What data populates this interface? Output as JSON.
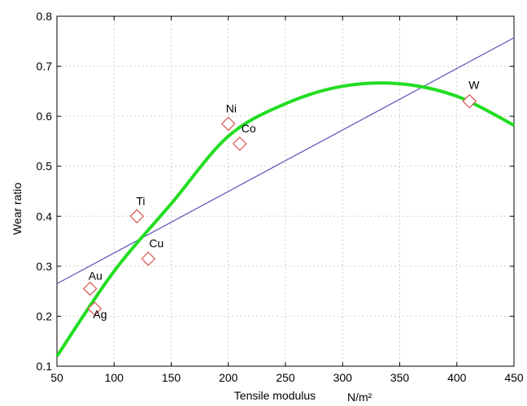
{
  "chart_data": {
    "type": "scatter",
    "title": "",
    "xlabel": "Tensile modulus",
    "xlabel_unit": "N/m²",
    "ylabel": "Wear ratio",
    "xlim": [
      50,
      450
    ],
    "ylim": [
      0.1,
      0.8
    ],
    "xticks": [
      50,
      100,
      150,
      200,
      250,
      300,
      350,
      400,
      450
    ],
    "yticks": [
      0.1,
      0.2,
      0.3,
      0.4,
      0.5,
      0.6,
      0.7,
      0.8
    ],
    "grid": true,
    "points": [
      {
        "label": "Au",
        "x": 79,
        "y": 0.255
      },
      {
        "label": "Ag",
        "x": 83,
        "y": 0.215
      },
      {
        "label": "Ti",
        "x": 120,
        "y": 0.4
      },
      {
        "label": "Cu",
        "x": 130,
        "y": 0.315
      },
      {
        "label": "Ni",
        "x": 200,
        "y": 0.585
      },
      {
        "label": "Co",
        "x": 210,
        "y": 0.545
      },
      {
        "label": "W",
        "x": 411,
        "y": 0.63
      }
    ],
    "linear_fit": {
      "x": [
        50,
        450
      ],
      "y": [
        0.265,
        0.757
      ]
    },
    "curve_fit": {
      "x": [
        50,
        100,
        150,
        200,
        250,
        300,
        350,
        400,
        450
      ],
      "y": [
        0.12,
        0.29,
        0.425,
        0.56,
        0.625,
        0.66,
        0.665,
        0.64,
        0.582
      ]
    },
    "colors": {
      "points": "#d9534f",
      "linear": "#5555bb",
      "curve": "#22dd22"
    }
  }
}
